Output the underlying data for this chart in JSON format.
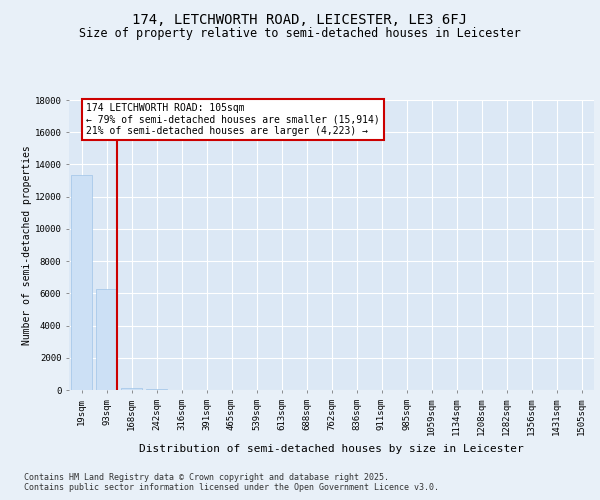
{
  "title": "174, LETCHWORTH ROAD, LEICESTER, LE3 6FJ",
  "subtitle": "Size of property relative to semi-detached houses in Leicester",
  "xlabel": "Distribution of semi-detached houses by size in Leicester",
  "ylabel": "Number of semi-detached properties",
  "categories": [
    "19sqm",
    "93sqm",
    "168sqm",
    "242sqm",
    "316sqm",
    "391sqm",
    "465sqm",
    "539sqm",
    "613sqm",
    "688sqm",
    "762sqm",
    "836sqm",
    "911sqm",
    "985sqm",
    "1059sqm",
    "1134sqm",
    "1208sqm",
    "1282sqm",
    "1356sqm",
    "1431sqm",
    "1505sqm"
  ],
  "values": [
    13350,
    6300,
    150,
    60,
    20,
    10,
    5,
    3,
    2,
    1,
    1,
    0,
    0,
    0,
    0,
    0,
    0,
    0,
    0,
    0,
    0
  ],
  "bar_color": "#cce0f5",
  "bar_edge_color": "#a0c4e8",
  "subject_line_color": "#cc0000",
  "subject_label": "174 LETCHWORTH ROAD: 105sqm",
  "annotation_smaller": "← 79% of semi-detached houses are smaller (15,914)",
  "annotation_larger": "21% of semi-detached houses are larger (4,223) →",
  "annotation_box_color": "#cc0000",
  "ylim": [
    0,
    18000
  ],
  "yticks": [
    0,
    2000,
    4000,
    6000,
    8000,
    10000,
    12000,
    14000,
    16000,
    18000
  ],
  "background_color": "#e8f0f8",
  "plot_bg_color": "#dce8f5",
  "grid_color": "#ffffff",
  "footer_text": "Contains HM Land Registry data © Crown copyright and database right 2025.\nContains public sector information licensed under the Open Government Licence v3.0.",
  "title_fontsize": 10,
  "subtitle_fontsize": 8.5,
  "xlabel_fontsize": 8,
  "ylabel_fontsize": 7,
  "tick_fontsize": 6.5,
  "annotation_fontsize": 7,
  "footer_fontsize": 6
}
